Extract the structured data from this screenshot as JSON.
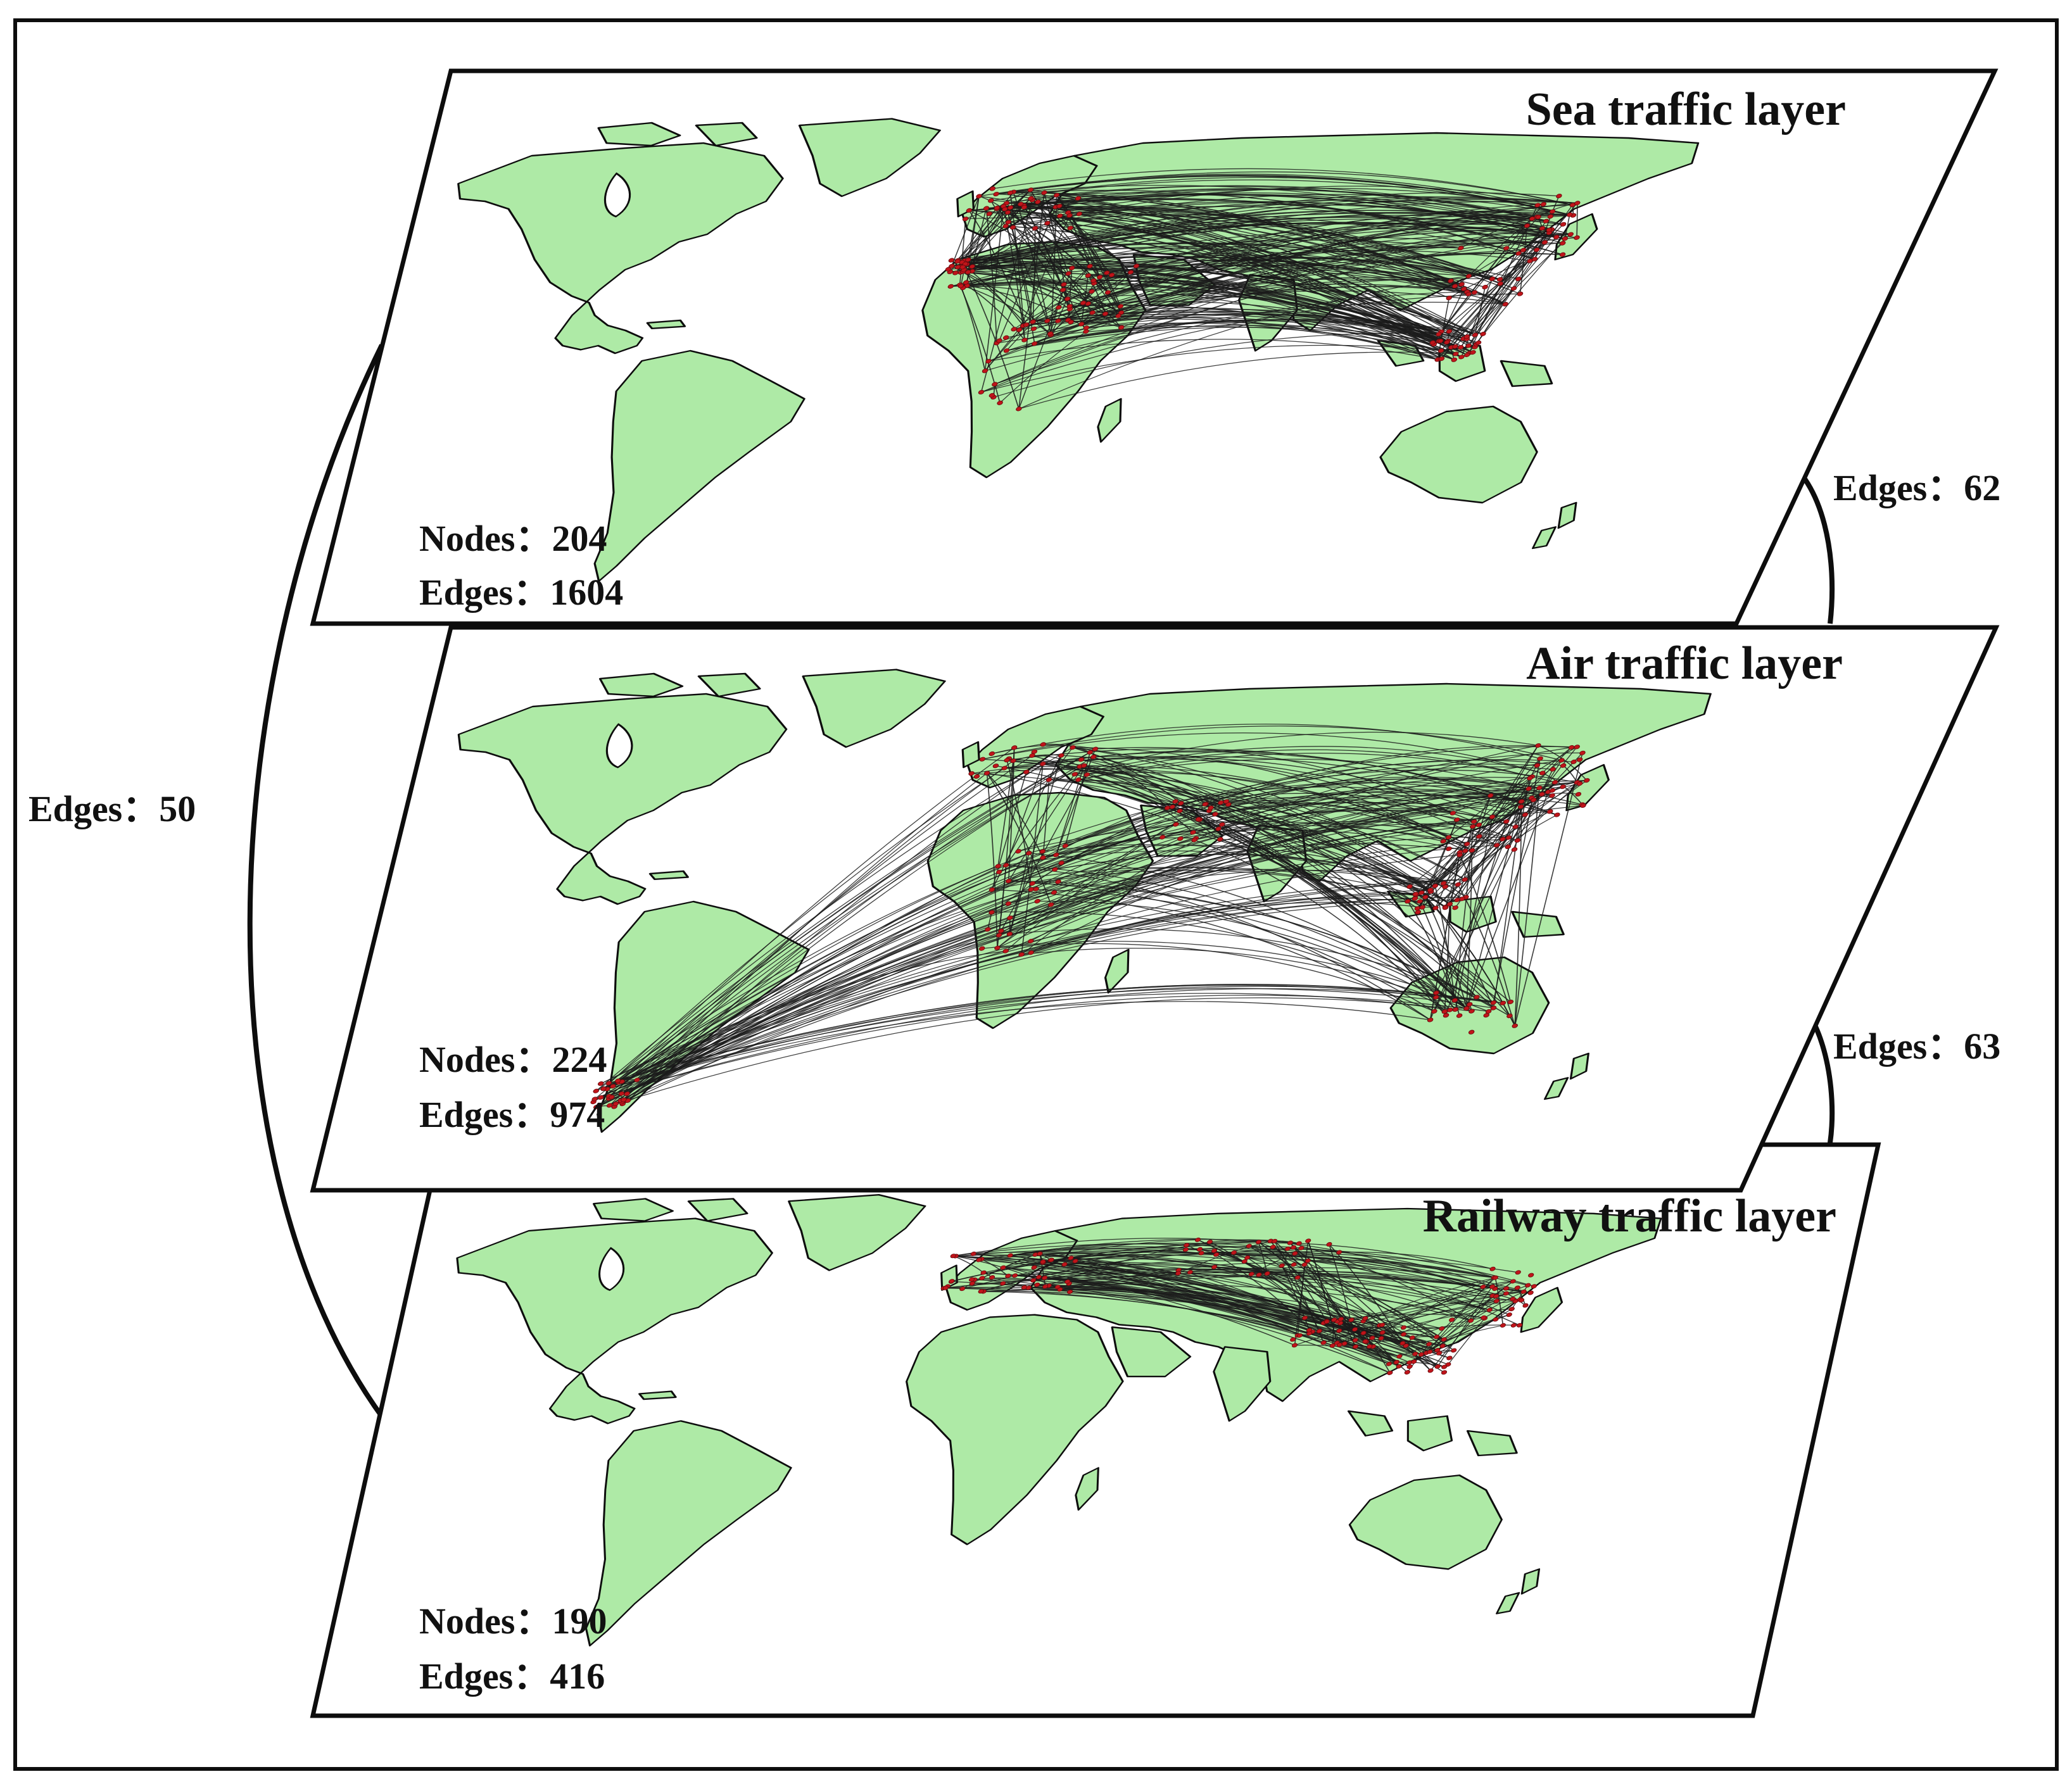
{
  "layers": [
    {
      "key": "sea",
      "title": "Sea traffic layer",
      "nodes_label": "Nodes：204",
      "edges_label": "Edges：1604",
      "node_color": "#c0141a"
    },
    {
      "key": "air",
      "title": "Air traffic layer",
      "nodes_label": "Nodes：224",
      "edges_label": "Edges：974",
      "node_color": "#c0141a"
    },
    {
      "key": "rail",
      "title": "Railway traffic layer",
      "nodes_label": "Nodes：190",
      "edges_label": "Edges：416",
      "node_color": "#c0141a"
    }
  ],
  "interlayer": {
    "sea_rail": "Edges：50",
    "sea_air": "Edges：62",
    "air_rail": "Edges：63"
  },
  "colors": {
    "land": "#aeeaa6",
    "coast": "#0d0d0d",
    "route": "#1b1b1b",
    "node": "#c0141a"
  }
}
